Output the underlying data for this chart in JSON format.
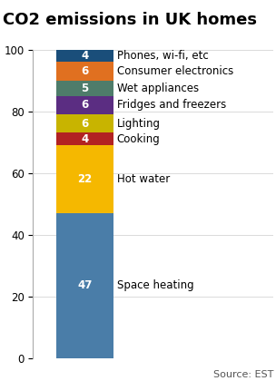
{
  "title": "CO2 emissions in UK homes",
  "ylabel": "%",
  "source": "Source: EST",
  "categories": [
    "Space heating",
    "Hot water",
    "Cooking",
    "Lighting",
    "Fridges and freezers",
    "Wet appliances",
    "Consumer electronics",
    "Phones, wi-fi, etc"
  ],
  "values": [
    47,
    22,
    4,
    6,
    6,
    5,
    6,
    4
  ],
  "colors": [
    "#4a7da8",
    "#f5b800",
    "#b22222",
    "#c8b400",
    "#5b2d82",
    "#4e7c6a",
    "#e07020",
    "#1a4e7a"
  ],
  "ylim": [
    0,
    100
  ],
  "yticks": [
    0,
    20,
    40,
    60,
    80,
    100
  ],
  "figsize": [
    3.04,
    4.2
  ],
  "dpi": 100,
  "title_fontsize": 13,
  "label_fontsize": 8.5,
  "tick_fontsize": 8.5,
  "value_fontsize": 8.5,
  "source_fontsize": 8
}
